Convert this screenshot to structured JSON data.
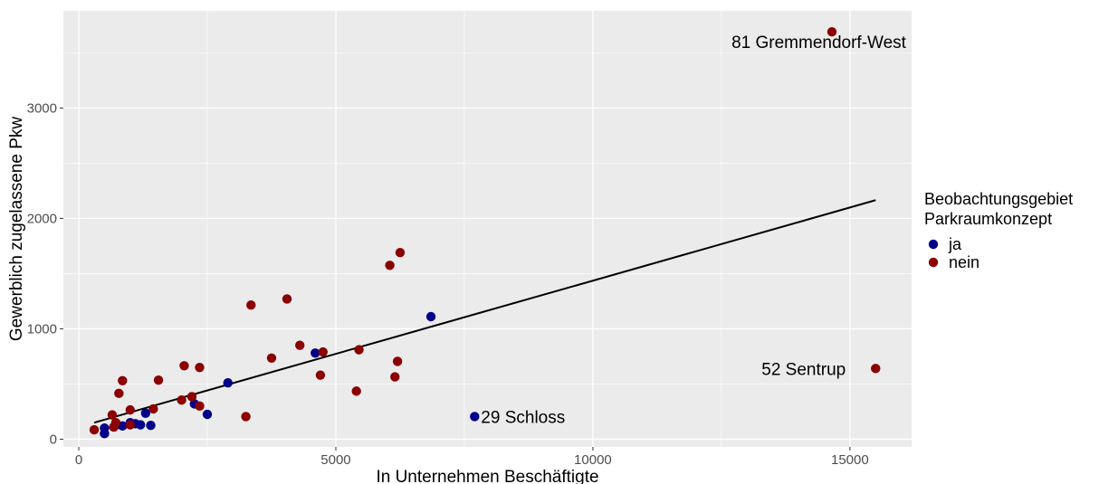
{
  "chart_data": {
    "type": "scatter",
    "xlabel": "In Unternehmen Beschäftigte",
    "ylabel": "Gewerblich zugelassene Pkw",
    "xlim": [
      -300,
      16200
    ],
    "ylim": [
      -70,
      3880
    ],
    "x_ticks": [
      0,
      5000,
      10000,
      15000
    ],
    "x_tick_labels": [
      "0",
      "5000",
      "10000",
      "15000"
    ],
    "y_ticks": [
      0,
      1000,
      2000,
      3000
    ],
    "y_tick_labels": [
      "0",
      "1000",
      "2000",
      "3000"
    ],
    "grid": true,
    "legend": {
      "title_lines": [
        "Beobachtungsgebiet",
        "Parkraumkonzept"
      ],
      "position": "right",
      "entries": [
        {
          "label": "ja",
          "color": "#00008b"
        },
        {
          "label": "nein",
          "color": "#8b0000"
        }
      ]
    },
    "series": [
      {
        "name": "ja",
        "color": "#00008b",
        "points": [
          {
            "x": 500,
            "y": 50
          },
          {
            "x": 500,
            "y": 100
          },
          {
            "x": 700,
            "y": 120
          },
          {
            "x": 850,
            "y": 120
          },
          {
            "x": 1000,
            "y": 150
          },
          {
            "x": 1100,
            "y": 140
          },
          {
            "x": 1200,
            "y": 130
          },
          {
            "x": 1300,
            "y": 235
          },
          {
            "x": 1400,
            "y": 125
          },
          {
            "x": 2250,
            "y": 320
          },
          {
            "x": 2500,
            "y": 225
          },
          {
            "x": 2900,
            "y": 510
          },
          {
            "x": 4600,
            "y": 780
          },
          {
            "x": 6850,
            "y": 1110
          },
          {
            "x": 7700,
            "y": 205
          }
        ]
      },
      {
        "name": "nein",
        "color": "#8b0000",
        "points": [
          {
            "x": 300,
            "y": 85
          },
          {
            "x": 650,
            "y": 220
          },
          {
            "x": 680,
            "y": 110
          },
          {
            "x": 720,
            "y": 150
          },
          {
            "x": 780,
            "y": 415
          },
          {
            "x": 850,
            "y": 530
          },
          {
            "x": 1000,
            "y": 265
          },
          {
            "x": 1000,
            "y": 130
          },
          {
            "x": 1450,
            "y": 275
          },
          {
            "x": 1550,
            "y": 535
          },
          {
            "x": 2000,
            "y": 355
          },
          {
            "x": 2050,
            "y": 665
          },
          {
            "x": 2200,
            "y": 385
          },
          {
            "x": 2350,
            "y": 300
          },
          {
            "x": 2350,
            "y": 650
          },
          {
            "x": 3250,
            "y": 205
          },
          {
            "x": 3350,
            "y": 1215
          },
          {
            "x": 3750,
            "y": 735
          },
          {
            "x": 4050,
            "y": 1270
          },
          {
            "x": 4300,
            "y": 850
          },
          {
            "x": 4700,
            "y": 580
          },
          {
            "x": 4750,
            "y": 790
          },
          {
            "x": 5400,
            "y": 435
          },
          {
            "x": 5450,
            "y": 810
          },
          {
            "x": 6050,
            "y": 1575
          },
          {
            "x": 6150,
            "y": 565
          },
          {
            "x": 6200,
            "y": 705
          },
          {
            "x": 6250,
            "y": 1690
          },
          {
            "x": 14650,
            "y": 3690
          },
          {
            "x": 15500,
            "y": 640
          }
        ]
      }
    ],
    "trend_line": {
      "x": [
        300,
        15500
      ],
      "y": [
        150,
        2165
      ],
      "color": "#000000"
    },
    "annotations": [
      {
        "text": "81 Gremmendorf-West",
        "x": 14650,
        "y": 3690,
        "anchor": "below-left"
      },
      {
        "text": "52 Sentrup",
        "x": 15500,
        "y": 640,
        "anchor": "left"
      },
      {
        "text": "29 Schloss",
        "x": 7700,
        "y": 205,
        "anchor": "right"
      }
    ]
  }
}
